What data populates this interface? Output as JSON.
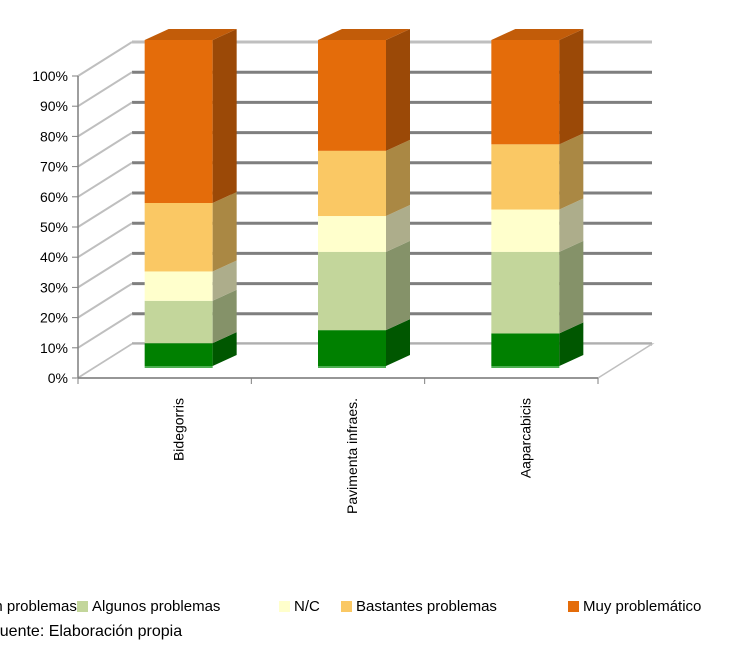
{
  "chart_data": {
    "type": "bar",
    "stacked": true,
    "percent_stacked": true,
    "three_d": true,
    "categories": [
      "Bidegorris",
      "Pavimenta infraes.",
      "Aaparcabicis"
    ],
    "ylim": [
      0,
      100
    ],
    "y_ticks": [
      "0%",
      "10%",
      "20%",
      "30%",
      "40%",
      "50%",
      "60%",
      "70%",
      "80%",
      "90%",
      "100%"
    ],
    "grid": true,
    "legend_position": "bottom",
    "series": [
      {
        "name": "Sin problemas",
        "color": "#008000",
        "values": [
          7,
          11,
          10
        ]
      },
      {
        "name": "Algunos problemas",
        "color": "#c3d69b",
        "values": [
          13,
          24,
          25
        ]
      },
      {
        "name": "N/C",
        "color": "#ffffcc",
        "values": [
          9,
          11,
          13
        ]
      },
      {
        "name": "Bastantes problemas",
        "color": "#fac864",
        "values": [
          21,
          20,
          20
        ]
      },
      {
        "name": "Muy problemático",
        "color": "#e46c0a",
        "values": [
          50,
          34,
          32
        ]
      }
    ]
  },
  "legend": {
    "items": [
      {
        "label": "Sin problemas",
        "color": "#008000"
      },
      {
        "label": "Algunos problemas",
        "color": "#c3d69b"
      },
      {
        "label": "N/C",
        "color": "#ffffcc"
      },
      {
        "label": "Bastantes problemas",
        "color": "#fac864"
      },
      {
        "label": "Muy problemático",
        "color": "#e46c0a"
      }
    ]
  },
  "source_text": "Fuente: Elaboración propia"
}
